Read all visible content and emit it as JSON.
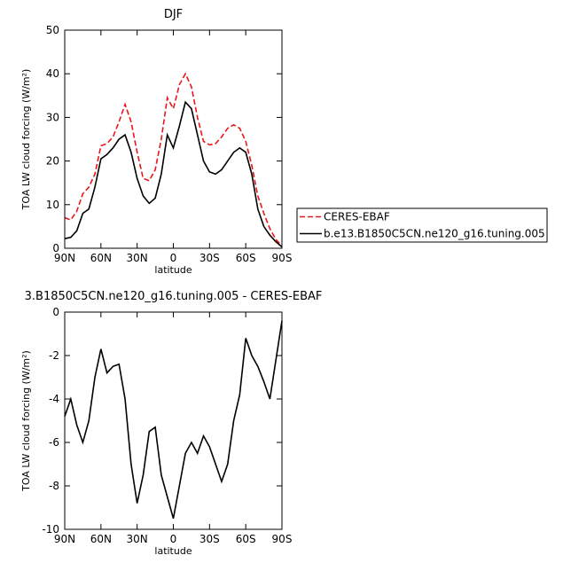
{
  "chart_data": [
    {
      "type": "line",
      "title": "DJF",
      "xlabel": "latitude",
      "ylabel": "TOA LW cloud forcing (W/m²)",
      "x": [
        90,
        85,
        80,
        75,
        70,
        65,
        60,
        55,
        50,
        45,
        40,
        35,
        30,
        25,
        20,
        15,
        10,
        5,
        0,
        -5,
        -10,
        -15,
        -20,
        -25,
        -30,
        -35,
        -40,
        -45,
        -50,
        -55,
        -60,
        -65,
        -70,
        -75,
        -80,
        -85,
        -90
      ],
      "series": [
        {
          "name": "CERES-EBAF",
          "color": "#e8161b",
          "dash": "dashed",
          "values": [
            7,
            6.5,
            8.5,
            12.5,
            14,
            17,
            23.5,
            24,
            25.5,
            29,
            33,
            29,
            22,
            16,
            15.5,
            18,
            25,
            34.5,
            32,
            37.5,
            40,
            37,
            30,
            24.5,
            23.7,
            24,
            25.5,
            27.5,
            28.3,
            27.5,
            24.5,
            19,
            12,
            8,
            4.5,
            2,
            0.5
          ]
        },
        {
          "name": "b.e13.B1850C5CN.ne120_g16.tuning.005",
          "color": "#000000",
          "dash": "solid",
          "values": [
            2.2,
            2.5,
            4,
            8,
            9,
            14,
            20.5,
            21.5,
            23,
            25,
            26,
            22,
            16,
            12,
            10.3,
            11.5,
            17,
            26,
            23,
            28,
            33.5,
            32,
            26,
            20,
            17.5,
            17,
            18,
            20,
            22,
            23,
            22,
            17,
            9,
            5,
            3,
            1.5,
            0.3
          ]
        }
      ],
      "xlim": [
        90,
        -90
      ],
      "xticks": [
        {
          "value": 90,
          "label": "90N"
        },
        {
          "value": 60,
          "label": "60N"
        },
        {
          "value": 30,
          "label": "30N"
        },
        0,
        {
          "value": -30,
          "label": "30S"
        },
        {
          "value": -60,
          "label": "60S"
        },
        {
          "value": -90,
          "label": "90S"
        }
      ],
      "ylim": [
        0,
        50
      ],
      "yticks": [
        0,
        10,
        20,
        30,
        40,
        50
      ],
      "legend": "right"
    },
    {
      "type": "line",
      "title": "3.B1850C5CN.ne120_g16.tuning.005 - CERES-EBAF",
      "xlabel": "latitude",
      "ylabel": "TOA LW cloud forcing (W/m²)",
      "x": [
        90,
        85,
        80,
        75,
        70,
        65,
        60,
        55,
        50,
        45,
        40,
        35,
        30,
        25,
        20,
        15,
        10,
        5,
        0,
        -5,
        -10,
        -15,
        -20,
        -25,
        -30,
        -35,
        -40,
        -45,
        -50,
        -55,
        -60,
        -65,
        -70,
        -75,
        -80,
        -85,
        -90
      ],
      "color": "#000000",
      "values": [
        -4.8,
        -4.0,
        -5.2,
        -6.0,
        -5.0,
        -3.0,
        -1.7,
        -2.8,
        -2.5,
        -2.4,
        -4.0,
        -7.0,
        -8.8,
        -7.5,
        -5.5,
        -5.3,
        -7.5,
        -8.5,
        -9.5,
        -8.0,
        -6.5,
        -6.0,
        -6.5,
        -5.7,
        -6.2,
        -7.0,
        -7.8,
        -7.0,
        -5.0,
        -3.8,
        -1.2,
        -2.0,
        -2.5,
        -3.2,
        -4.0,
        -2.2,
        -0.4
      ],
      "xlim": [
        90,
        -90
      ],
      "xticks": [
        {
          "value": 90,
          "label": "90N"
        },
        {
          "value": 60,
          "label": "60N"
        },
        {
          "value": 30,
          "label": "30N"
        },
        0,
        {
          "value": -30,
          "label": "30S"
        },
        {
          "value": -60,
          "label": "60S"
        },
        {
          "value": -90,
          "label": "90S"
        }
      ],
      "ylim": [
        -10,
        0
      ],
      "yticks": [
        -10,
        -8,
        -6,
        -4,
        -2,
        0
      ]
    }
  ]
}
